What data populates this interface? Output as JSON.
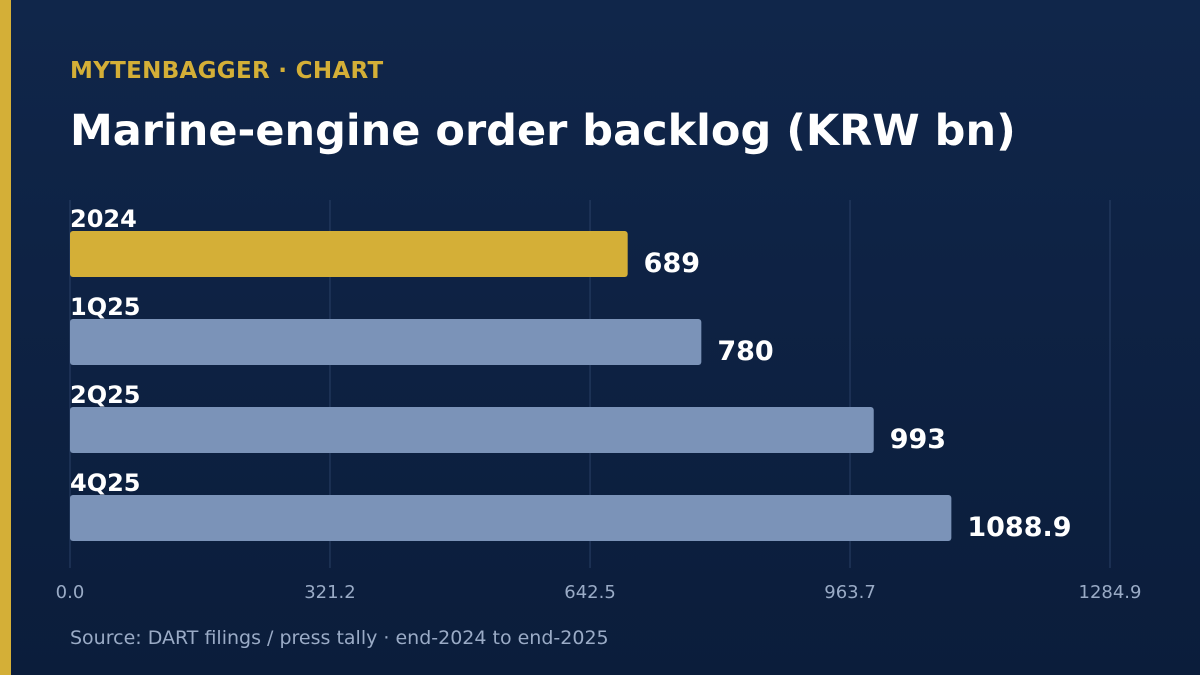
{
  "header": {
    "kicker": "MYTENBAGGER · CHART",
    "title": "Marine-engine order backlog (KRW bn)"
  },
  "footer": {
    "source": "Source: DART filings / press tally · end-2024 to end-2025"
  },
  "colors": {
    "accent": "#d4af37",
    "bar_default": "#7b93b8",
    "gridline": "#2a4066",
    "tick_text": "#9aabc6"
  },
  "chart_data": {
    "type": "bar",
    "orientation": "horizontal",
    "title": "Marine-engine order backlog (KRW bn)",
    "categories": [
      "2024",
      "1Q25",
      "2Q25",
      "4Q25"
    ],
    "values": [
      689,
      780,
      993,
      1088.9
    ],
    "value_labels": [
      "689",
      "780",
      "993",
      "1088.9"
    ],
    "highlight_index": 0,
    "xlim": [
      0,
      1284.9
    ],
    "x_ticks": [
      "0.0",
      "321.2",
      "642.5",
      "963.7",
      "1284.9"
    ],
    "grid": true,
    "legend": "none"
  }
}
